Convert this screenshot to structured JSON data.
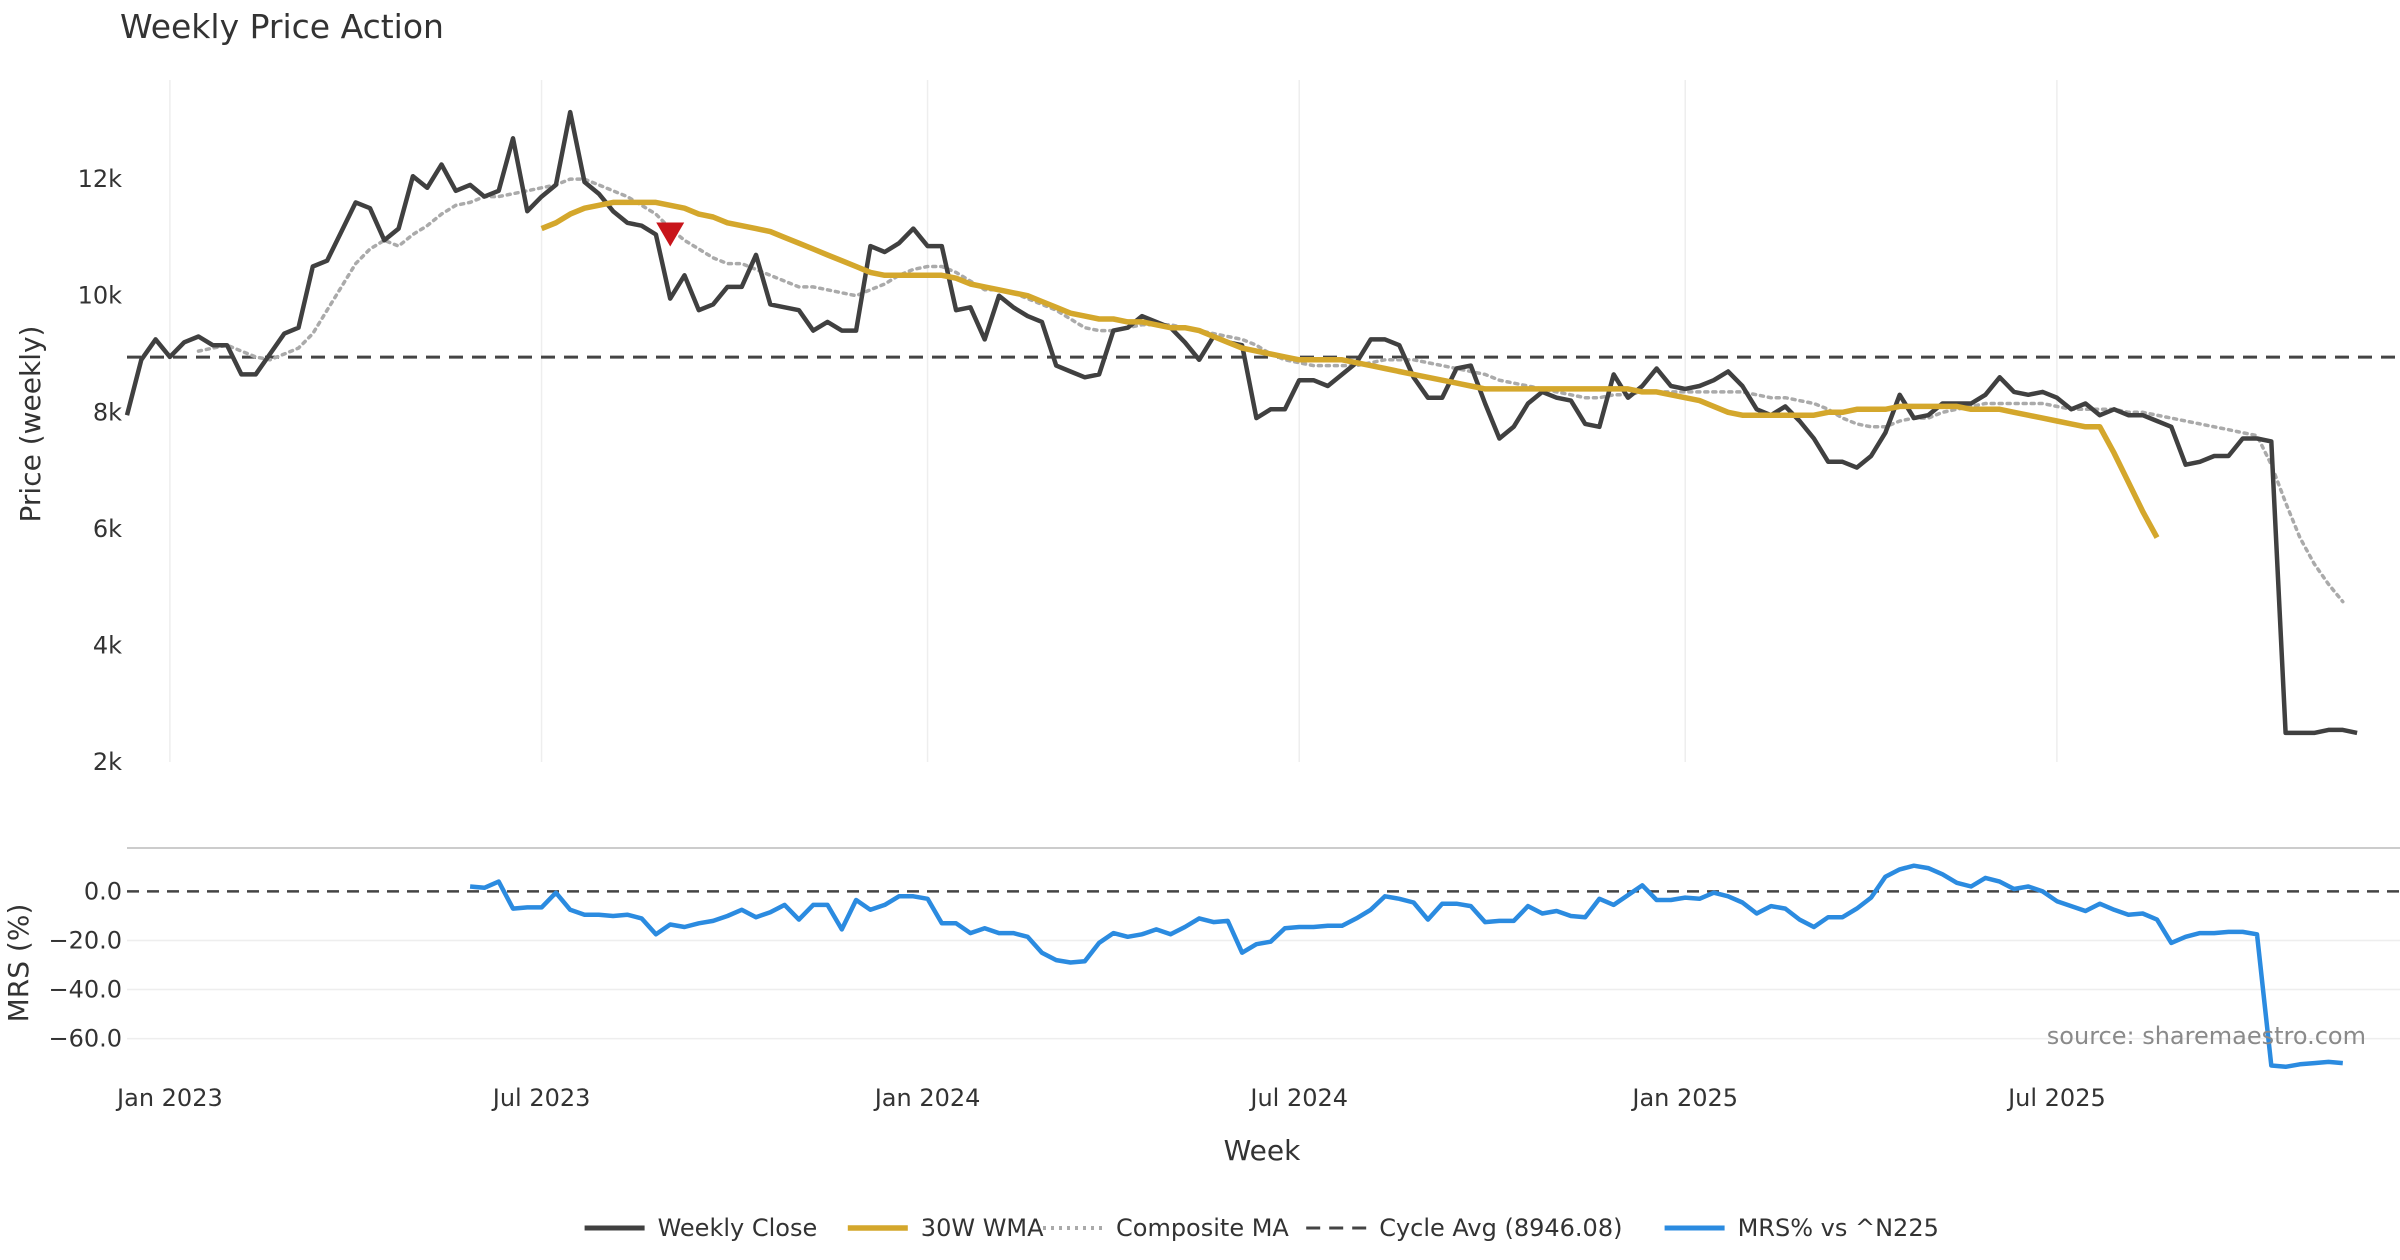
{
  "chart_data": {
    "type": "line",
    "title": "Weekly Price Action",
    "xlabel": "Week",
    "source_note": "source: sharemaestro.com",
    "x_tick_labels": [
      "Jan 2023",
      "Jul 2023",
      "Jan 2024",
      "Jul 2024",
      "Jan 2025",
      "Jul 2025"
    ],
    "x_tick_index": [
      3,
      29,
      56,
      82,
      109,
      135
    ],
    "weeks_count": 160,
    "price_panel": {
      "ylabel": "Price (weekly)",
      "ylim": [
        2000,
        13700
      ],
      "y_ticks": [
        2000,
        4000,
        6000,
        8000,
        10000,
        12000
      ],
      "y_tick_labels": [
        "2k",
        "4k",
        "6k",
        "8k",
        "10k",
        "12k"
      ],
      "grid_y": false,
      "grid_x": true
    },
    "mrs_panel": {
      "ylabel": "MRS (%)",
      "ylim": [
        -72,
        12
      ],
      "y_ticks": [
        0,
        -20,
        -40,
        -60
      ],
      "y_tick_labels": [
        "0.0",
        "−20.0",
        "−40.0",
        "−60.0"
      ],
      "grid_y": true
    },
    "colors": {
      "close": "#404040",
      "wma": "#d4a72c",
      "composite": "#aaaaaa",
      "cycle": "#444444",
      "mrs": "#2b8be0",
      "marker": "#c8151b"
    },
    "series": [
      {
        "name": "Weekly Close",
        "start_index": 0,
        "values": [
          7950,
          8900,
          9250,
          8950,
          9200,
          9300,
          9150,
          9150,
          8650,
          8650,
          9000,
          9350,
          9450,
          10500,
          10600,
          11100,
          11600,
          11500,
          10950,
          11150,
          12050,
          11850,
          12250,
          11800,
          11900,
          11700,
          11800,
          12700,
          11450,
          11700,
          11900,
          13150,
          11950,
          11750,
          11450,
          11250,
          11200,
          11050,
          9950,
          10350,
          9750,
          9850,
          10150,
          10150,
          10700,
          9850,
          9800,
          9750,
          9400,
          9550,
          9400,
          9400,
          10850,
          10750,
          10900,
          11150,
          10850,
          10850,
          9750,
          9800,
          9250,
          10000,
          9800,
          9650,
          9550,
          8800,
          8700,
          8600,
          8650,
          9400,
          9450,
          9650,
          9550,
          9450,
          9200,
          8900,
          9300,
          9200,
          9150,
          7900,
          8050,
          8050,
          8550,
          8550,
          8450,
          8650,
          8850,
          9250,
          9250,
          9150,
          8600,
          8250,
          8250,
          8750,
          8800,
          8150,
          7550,
          7750,
          8150,
          8350,
          8250,
          8200,
          7800,
          7750,
          8650,
          8250,
          8450,
          8750,
          8450,
          8400,
          8450,
          8550,
          8700,
          8450,
          8050,
          7950,
          8100,
          7850,
          7550,
          7150,
          7150,
          7050,
          7250,
          7650,
          8300,
          7900,
          7950,
          8150,
          8150,
          8150,
          8300,
          8600,
          8350,
          8300,
          8350,
          8250,
          8050,
          8150,
          7950,
          8050,
          7950,
          7950,
          7850,
          7750,
          7100,
          7150,
          7250,
          7250,
          7550,
          7550,
          7500,
          2500,
          2500,
          2500,
          2550,
          2550,
          2500
        ]
      },
      {
        "name": "30W WMA",
        "start_index": 29,
        "values": [
          11150,
          11250,
          11400,
          11500,
          11550,
          11600,
          11600,
          11600,
          11600,
          11550,
          11500,
          11400,
          11350,
          11250,
          11200,
          11150,
          11100,
          11000,
          10900,
          10800,
          10700,
          10600,
          10500,
          10400,
          10350,
          10350,
          10350,
          10350,
          10350,
          10300,
          10200,
          10150,
          10100,
          10050,
          10000,
          9900,
          9800,
          9700,
          9650,
          9600,
          9600,
          9550,
          9550,
          9500,
          9450,
          9450,
          9400,
          9300,
          9200,
          9100,
          9050,
          9000,
          8950,
          8900,
          8900,
          8900,
          8900,
          8850,
          8800,
          8750,
          8700,
          8650,
          8600,
          8550,
          8500,
          8450,
          8400,
          8400,
          8400,
          8400,
          8400,
          8400,
          8400,
          8400,
          8400,
          8400,
          8400,
          8350,
          8350,
          8300,
          8250,
          8200,
          8100,
          8000,
          7950,
          7950,
          7950,
          7950,
          7950,
          7950,
          8000,
          8000,
          8050,
          8050,
          8050,
          8100,
          8100,
          8100,
          8100,
          8100,
          8050,
          8050,
          8050,
          8000,
          7950,
          7900,
          7850,
          7800,
          7750,
          7750,
          7300,
          6800,
          6300,
          5850
        ]
      },
      {
        "name": "Composite MA",
        "start_index": 0,
        "values": [
          null,
          null,
          null,
          null,
          null,
          9050,
          9100,
          9150,
          9050,
          8950,
          8900,
          9000,
          9100,
          9350,
          9750,
          10150,
          10550,
          10800,
          10950,
          10850,
          11050,
          11200,
          11400,
          11550,
          11600,
          11700,
          11700,
          11750,
          11800,
          11850,
          11900,
          12000,
          12000,
          11900,
          11800,
          11700,
          11550,
          11400,
          11150,
          10950,
          10800,
          10650,
          10550,
          10550,
          10450,
          10350,
          10250,
          10150,
          10150,
          10100,
          10050,
          10000,
          10100,
          10200,
          10350,
          10450,
          10500,
          10500,
          10400,
          10250,
          10100,
          10100,
          10050,
          9950,
          9850,
          9750,
          9600,
          9450,
          9400,
          9400,
          9450,
          9500,
          9500,
          9500,
          9450,
          9400,
          9350,
          9300,
          9250,
          9150,
          9000,
          8900,
          8850,
          8800,
          8800,
          8800,
          8800,
          8850,
          8900,
          8900,
          8900,
          8850,
          8800,
          8750,
          8700,
          8650,
          8550,
          8500,
          8450,
          8400,
          8350,
          8300,
          8250,
          8250,
          8300,
          8300,
          8350,
          8350,
          8350,
          8350,
          8350,
          8350,
          8350,
          8350,
          8300,
          8250,
          8250,
          8200,
          8150,
          8050,
          7900,
          7800,
          7750,
          7750,
          7850,
          7900,
          7900,
          8000,
          8050,
          8100,
          8150,
          8150,
          8150,
          8150,
          8150,
          8100,
          8050,
          8050,
          8050,
          8050,
          8000,
          8000,
          7950,
          7900,
          7850,
          7800,
          7750,
          7700,
          7650,
          7600,
          7100,
          6450,
          5850,
          5400,
          5050,
          4750
        ]
      },
      {
        "name": "Cycle Avg (8946.08)",
        "constant": 8946.08
      },
      {
        "name": "MRS% vs ^N225",
        "start_index": 24,
        "values": [
          2,
          1.5,
          4,
          -7,
          -6.5,
          -6.5,
          -0.5,
          -7.5,
          -9.5,
          -9.5,
          -10,
          -9.5,
          -11,
          -17.5,
          -13.5,
          -14.5,
          -13,
          -12,
          -10,
          -7.5,
          -10.5,
          -8.5,
          -5.5,
          -11.5,
          -5.5,
          -5.5,
          -15.5,
          -3.5,
          -7.5,
          -5.5,
          -2,
          -2,
          -3,
          -13,
          -13,
          -17,
          -15,
          -17,
          -17,
          -18.5,
          -25,
          -28,
          -29,
          -28.5,
          -21,
          -17,
          -18.5,
          -17.5,
          -15.5,
          -17.5,
          -14.5,
          -11,
          -12.5,
          -12,
          -25,
          -21.5,
          -20.5,
          -15,
          -14.5,
          -14.5,
          -14,
          -14,
          -11,
          -7.5,
          -2,
          -3,
          -4.5,
          -11.5,
          -5,
          -5,
          -6,
          -12.5,
          -12,
          -12,
          -6,
          -9,
          -8,
          -10,
          -10.5,
          -3,
          -5.5,
          -1.5,
          2.5,
          -3.5,
          -3.5,
          -2.5,
          -3,
          -0.5,
          -2,
          -4.5,
          -9,
          -6,
          -7,
          -11.5,
          -14.5,
          -10.5,
          -10.5,
          -7,
          -2.5,
          6,
          9,
          10.5,
          9.5,
          7,
          3.5,
          2,
          5.5,
          4,
          1,
          2,
          0,
          -4,
          -6,
          -8,
          -5,
          -7.5,
          -9.5,
          -9,
          -11.5,
          -21,
          -18.5,
          -17,
          -17,
          -16.5,
          -16.5,
          -17.5,
          -71,
          -71.5,
          -70.5,
          -70,
          -69.5,
          -70
        ]
      }
    ],
    "markers": [
      {
        "name": "sell-signal-marker",
        "shape": "triangle-down",
        "index": 38,
        "value": 11050
      }
    ],
    "legend": {
      "position": "bottom-center",
      "entries": [
        "Weekly Close",
        "30W WMA",
        "Composite MA",
        "Cycle Avg (8946.08)",
        "MRS% vs ^N225"
      ]
    }
  }
}
